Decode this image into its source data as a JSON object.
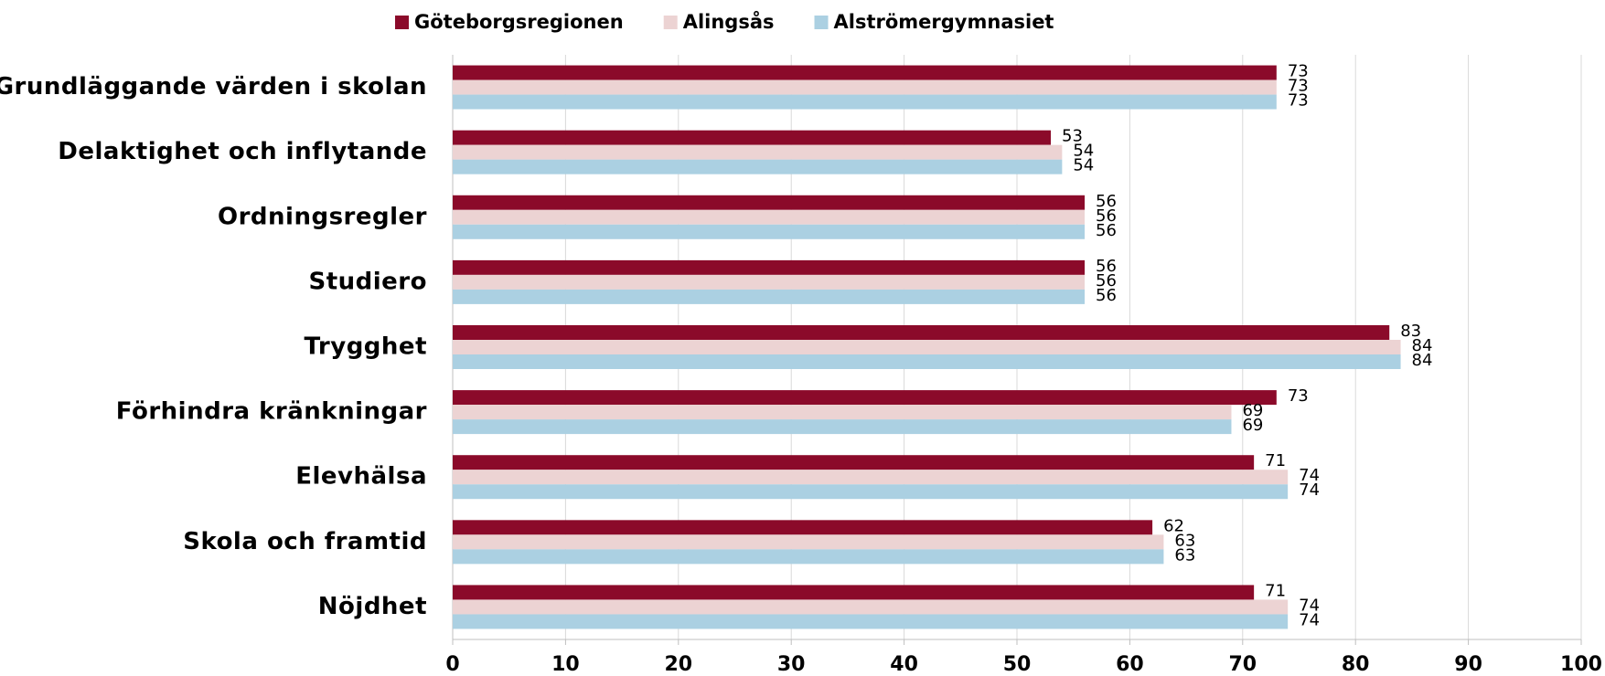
{
  "chart_data": {
    "type": "hbar",
    "categories": [
      "Grundläggande värden i skolan",
      "Delaktighet och inflytande",
      "Ordningsregler",
      "Studiero",
      "Trygghet",
      "Förhindra kränkningar",
      "Elevhälsa",
      "Skola och framtid",
      "Nöjdhet"
    ],
    "series": [
      {
        "name": "Göteborgsregionen",
        "color": "#8b0a2a",
        "values": [
          73,
          53,
          56,
          56,
          83,
          73,
          71,
          62,
          71
        ]
      },
      {
        "name": "Alingsås",
        "color": "#ecd3d3",
        "values": [
          73,
          54,
          56,
          56,
          84,
          69,
          74,
          63,
          74
        ]
      },
      {
        "name": "Alströmergymnasiet",
        "color": "#abd0e2",
        "values": [
          73,
          54,
          56,
          56,
          84,
          69,
          74,
          63,
          74
        ]
      }
    ],
    "xlim": [
      0,
      100
    ],
    "xticks": [
      0,
      10,
      20,
      30,
      40,
      50,
      60,
      70,
      80,
      90,
      100
    ],
    "grid": true,
    "legend": "top"
  }
}
